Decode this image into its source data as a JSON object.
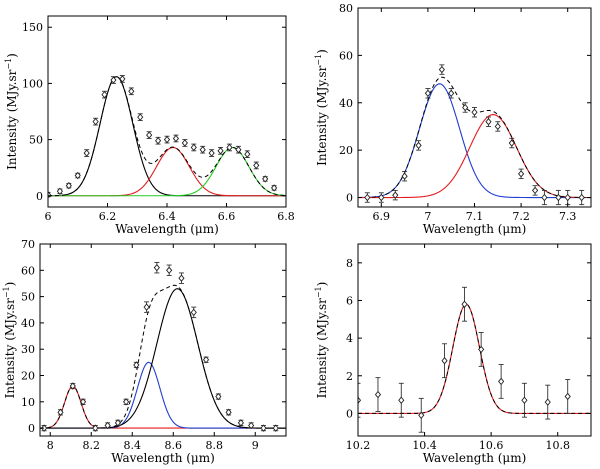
{
  "chart_data": [
    {
      "type": "line",
      "panel": "top-left",
      "xlabel": "Wavelength (μm)",
      "ylabel": "Intensity (MJy.sr",
      "ylabel_sup": "−1",
      "ylabel_tail": ")",
      "xlim": [
        6.0,
        6.8
      ],
      "ylim": [
        -10,
        160
      ],
      "xticks": [
        6.0,
        6.2,
        6.4,
        6.6,
        6.8
      ],
      "xtick_labels": [
        "6",
        "6.2",
        "6.4",
        "6.6",
        "6.8"
      ],
      "yticks": [
        0,
        50,
        100,
        150
      ],
      "ytick_labels": [
        "0",
        "50",
        "100",
        "150"
      ],
      "components": [
        {
          "name": "gaussian-1",
          "color": "#000000",
          "style": "solid",
          "center": 6.23,
          "amplitude": 106,
          "sigma": 0.055
        },
        {
          "name": "gaussian-2",
          "color": "#e41a1c",
          "style": "solid",
          "center": 6.42,
          "amplitude": 43,
          "sigma": 0.055
        },
        {
          "name": "gaussian-3",
          "color": "#22cc22",
          "style": "solid",
          "center": 6.62,
          "amplitude": 43,
          "sigma": 0.055
        }
      ],
      "total_fit": {
        "name": "total",
        "color": "#000000",
        "style": "dashed"
      },
      "observed": {
        "x": [
          6.0,
          6.04,
          6.07,
          6.1,
          6.13,
          6.16,
          6.19,
          6.22,
          6.25,
          6.28,
          6.31,
          6.34,
          6.37,
          6.4,
          6.43,
          6.46,
          6.49,
          6.52,
          6.55,
          6.58,
          6.61,
          6.64,
          6.67,
          6.7,
          6.73,
          6.76
        ],
        "y": [
          1,
          4,
          9,
          18,
          38,
          66,
          90,
          103,
          104,
          93,
          70,
          54,
          49,
          50,
          51,
          47,
          43,
          41,
          38,
          40,
          43,
          41,
          37,
          27,
          15,
          7
        ],
        "err": [
          2,
          2,
          2,
          2,
          3,
          3,
          3,
          3,
          3,
          3,
          3,
          3,
          3,
          3,
          3,
          3,
          3,
          3,
          3,
          3,
          3,
          3,
          3,
          3,
          2,
          2
        ]
      }
    },
    {
      "type": "line",
      "panel": "top-right",
      "xlabel": "Wavelength (μm)",
      "ylabel": "Intensity (MJy.sr",
      "ylabel_sup": "−1",
      "ylabel_tail": ")",
      "xlim": [
        6.85,
        7.35
      ],
      "ylim": [
        -4,
        80
      ],
      "xticks": [
        6.9,
        7.0,
        7.1,
        7.2,
        7.3
      ],
      "xtick_labels": [
        "6.9",
        "7",
        "7.1",
        "7.2",
        "7.3"
      ],
      "yticks": [
        0,
        20,
        40,
        60,
        80
      ],
      "ytick_labels": [
        "0",
        "20",
        "40",
        "60",
        "80"
      ],
      "components": [
        {
          "name": "gaussian-1",
          "color": "#1f3fd0",
          "style": "solid",
          "center": 7.025,
          "amplitude": 48,
          "sigma": 0.043
        },
        {
          "name": "gaussian-2",
          "color": "#e41a1c",
          "style": "solid",
          "center": 7.14,
          "amplitude": 35,
          "sigma": 0.05
        }
      ],
      "total_fit": {
        "name": "total",
        "color": "#000000",
        "style": "dashed"
      },
      "observed": {
        "x": [
          6.87,
          6.9,
          6.93,
          6.95,
          6.98,
          7.0,
          7.03,
          7.05,
          7.08,
          7.1,
          7.13,
          7.15,
          7.18,
          7.2,
          7.23,
          7.25,
          7.28,
          7.3,
          7.33
        ],
        "y": [
          0,
          0,
          1,
          9,
          22,
          44,
          54,
          44,
          38,
          36,
          32,
          30,
          23,
          10,
          3,
          0,
          0,
          0,
          0
        ],
        "err": [
          2,
          2,
          2,
          2,
          2,
          2,
          2,
          2,
          2,
          2,
          2,
          2,
          2,
          2,
          2,
          3,
          3,
          3,
          3
        ]
      }
    },
    {
      "type": "line",
      "panel": "bottom-left",
      "xlabel": "Wavelength (μm)",
      "ylabel": "Intensity (MJy.sr",
      "ylabel_sup": "−1",
      "ylabel_tail": ")",
      "xlim": [
        7.95,
        9.15
      ],
      "ylim": [
        -3,
        70
      ],
      "xticks": [
        8.0,
        8.2,
        8.4,
        8.6,
        8.8,
        9.0
      ],
      "xtick_labels": [
        "8",
        "8.2",
        "8.4",
        "8.6",
        "8.8",
        "9"
      ],
      "yticks": [
        0,
        10,
        20,
        30,
        40,
        50,
        60,
        70
      ],
      "ytick_labels": [
        "0",
        "10",
        "20",
        "30",
        "40",
        "50",
        "60",
        "70"
      ],
      "components": [
        {
          "name": "gaussian-1",
          "color": "#e41a1c",
          "style": "solid",
          "center": 8.11,
          "amplitude": 16,
          "sigma": 0.04
        },
        {
          "name": "gaussian-2",
          "color": "#1f3fd0",
          "style": "solid",
          "center": 8.48,
          "amplitude": 25,
          "sigma": 0.055
        },
        {
          "name": "gaussian-3",
          "color": "#000000",
          "style": "solid",
          "center": 8.62,
          "amplitude": 53,
          "sigma": 0.1
        }
      ],
      "total_fit": {
        "name": "total",
        "color": "#000000",
        "style": "dashed"
      },
      "observed": {
        "x": [
          7.97,
          8.05,
          8.11,
          8.16,
          8.22,
          8.28,
          8.33,
          8.37,
          8.42,
          8.47,
          8.52,
          8.58,
          8.64,
          8.7,
          8.76,
          8.82,
          8.87,
          8.93,
          8.98,
          9.04,
          9.1
        ],
        "y": [
          0,
          6,
          16,
          10,
          0,
          1,
          2,
          10,
          24,
          46,
          61,
          60,
          57,
          44,
          26,
          12,
          6,
          2,
          1,
          0,
          0
        ],
        "err": [
          1,
          1,
          1,
          1,
          1,
          1,
          1,
          1,
          1,
          2,
          2,
          2,
          2,
          2,
          1,
          1,
          1,
          1,
          1,
          1,
          1
        ]
      }
    },
    {
      "type": "line",
      "panel": "bottom-right",
      "xlabel": "Wavelength (μm)",
      "ylabel": "Intensity (MJy.sr",
      "ylabel_sup": "−1",
      "ylabel_tail": ")",
      "xlim": [
        10.2,
        10.9
      ],
      "ylim": [
        -1.2,
        9
      ],
      "xticks": [
        10.2,
        10.4,
        10.6,
        10.8
      ],
      "xtick_labels": [
        "10.2",
        "10.4",
        "10.6",
        "10.8"
      ],
      "yticks": [
        0,
        2,
        4,
        6,
        8
      ],
      "ytick_labels": [
        "0",
        "2",
        "4",
        "6",
        "8"
      ],
      "components": [
        {
          "name": "gaussian-1",
          "color": "#e41a1c",
          "style": "solid",
          "center": 10.525,
          "amplitude": 5.8,
          "sigma": 0.04
        }
      ],
      "total_fit": {
        "name": "total",
        "color": "#000000",
        "style": "dashed"
      },
      "observed": {
        "x": [
          10.2,
          10.26,
          10.33,
          10.39,
          10.46,
          10.52,
          10.57,
          10.63,
          10.7,
          10.77,
          10.83
        ],
        "y": [
          0.7,
          1.0,
          0.7,
          -0.1,
          2.8,
          5.8,
          3.4,
          1.7,
          0.7,
          0.6,
          0.9
        ],
        "err": [
          0.9,
          0.9,
          0.9,
          0.9,
          0.9,
          0.9,
          0.9,
          0.9,
          0.9,
          0.9,
          0.9
        ]
      }
    }
  ]
}
